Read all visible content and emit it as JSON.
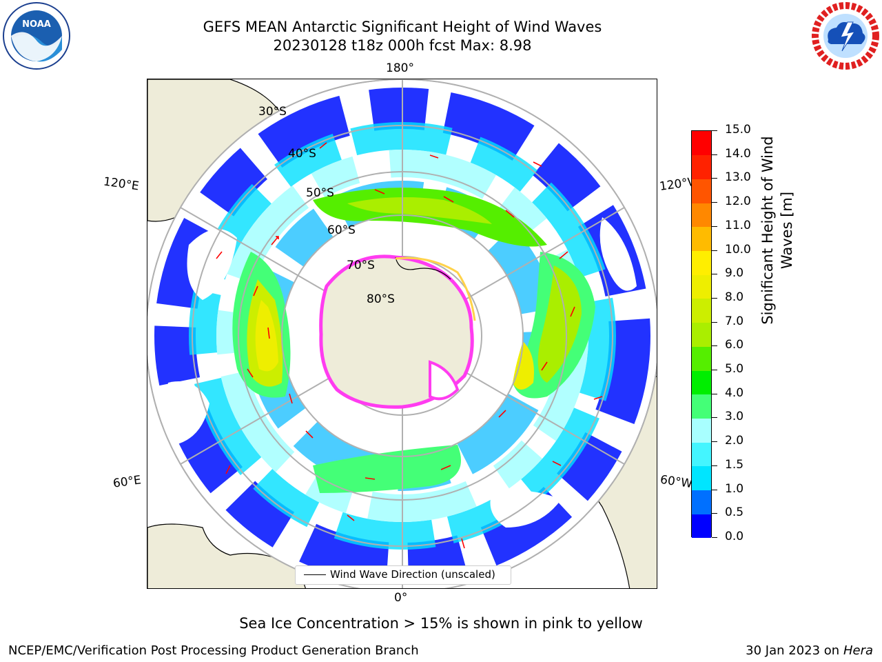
{
  "header": {
    "title_line1": "GEFS MEAN Antarctic Significant Height of Wind Waves",
    "title_line2": "20230128 t18z 000h fcst   Max: 8.98"
  },
  "logos": {
    "noaa": "NOAA",
    "noaa_ring": "NATIONAL OCEANIC AND ATMOSPHERIC ADMINISTRATION · U.S. DEPARTMENT OF COMMERCE",
    "nws_ring": "NATIONAL WEATHER SERVICE"
  },
  "map": {
    "projection": "south-polar-stereographic",
    "longitude_labels": {
      "top": "180°",
      "bottom": "0°",
      "left_upper": "120°E",
      "left_lower": "60°E",
      "right_upper": "120°W",
      "right_lower": "60°W"
    },
    "latitude_labels": [
      "30°S",
      "40°S",
      "50°S",
      "60°S",
      "70°S",
      "80°S"
    ],
    "legend": "Wind Wave Direction (unscaled)",
    "colors": {
      "land": "#eeecd9",
      "ice_edge": "#ff3cf0",
      "arrow": "#ff0000",
      "grid": "#b0b0b0"
    }
  },
  "colorbar": {
    "title_line1": "Significant Height of Wind",
    "title_line2": "Waves [m]",
    "ticks": [
      "0.0",
      "0.5",
      "1.0",
      "1.5",
      "2.0",
      "3.0",
      "4.0",
      "5.0",
      "6.0",
      "7.0",
      "8.0",
      "9.0",
      "10.0",
      "11.0",
      "12.0",
      "13.0",
      "14.0",
      "15.0"
    ],
    "colors": [
      "#0000ff",
      "#0070ff",
      "#00e5ff",
      "#44f5ff",
      "#a8ffff",
      "#44ff77",
      "#00ee00",
      "#55ee00",
      "#aaee00",
      "#ccee00",
      "#eeee00",
      "#ffee00",
      "#ffbb00",
      "#ff8800",
      "#ff5500",
      "#ff2200",
      "#ff0000"
    ]
  },
  "footer": {
    "note": "Sea Ice Concentration > 15% is shown in pink to yellow",
    "credit": "NCEP/EMC/Verification Post Processing Product Generation Branch",
    "date": "30 Jan 2023 on",
    "host": "Hera"
  }
}
